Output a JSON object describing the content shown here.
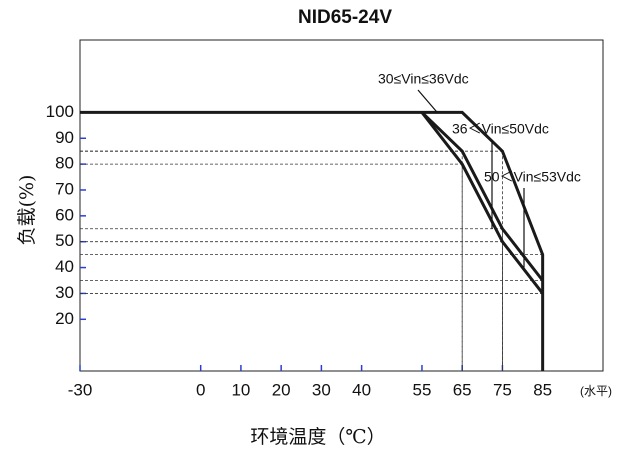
{
  "chart_data": {
    "type": "line",
    "title": "NID65-24V",
    "x_label": "环境温度（℃）",
    "x_unit": "(水平)",
    "y_label": "负载(%)",
    "xlim": [
      -30,
      100
    ],
    "xticks": [
      -30,
      0,
      10,
      20,
      30,
      40,
      55,
      65,
      75,
      85
    ],
    "ylim": [
      0,
      128
    ],
    "yticks": [
      20,
      30,
      40,
      50,
      60,
      70,
      80,
      90,
      100
    ],
    "series": [
      {
        "name": "30≤Vin≤36Vdc",
        "color": "#1a1a1a",
        "x": [
          -30,
          65,
          75,
          85,
          85
        ],
        "values": [
          100,
          100,
          85,
          45,
          0
        ]
      },
      {
        "name": "36＜Vin≤50Vdc",
        "color": "#1a1a1a",
        "x": [
          55,
          65,
          75,
          85
        ],
        "values": [
          100,
          85,
          55,
          35
        ]
      },
      {
        "name": "50＜Vin≤53Vdc",
        "color": "#1a1a1a",
        "x": [
          55,
          65,
          75,
          85
        ],
        "values": [
          100,
          80,
          50,
          30
        ]
      }
    ]
  }
}
